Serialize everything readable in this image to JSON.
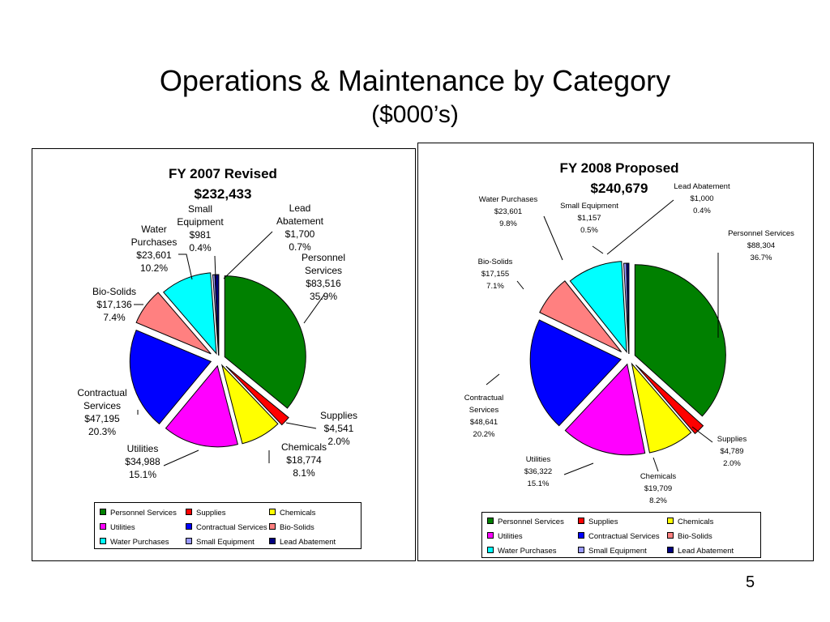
{
  "slide": {
    "title": "Operations & Maintenance by Category",
    "subtitle": "($000’s)",
    "page_number": "5"
  },
  "chart_data": [
    {
      "type": "pie",
      "title": "FY 2007 Revised",
      "subtitle": "$232,433",
      "categories": [
        "Personnel Services",
        "Supplies",
        "Chemicals",
        "Utilities",
        "Contractual Services",
        "Bio-Solids",
        "Water Purchases",
        "Small Equipment",
        "Lead Abatement"
      ],
      "values": [
        83516,
        4541,
        18774,
        34988,
        47195,
        17136,
        23601,
        981,
        1700
      ],
      "value_labels": [
        "$83,516",
        "$4,541",
        "$18,774",
        "$34,988",
        "$47,195",
        "$17,136",
        "$23,601",
        "$981",
        "$1,700"
      ],
      "percent_labels": [
        "35.9%",
        "2.0%",
        "8.1%",
        "15.1%",
        "20.3%",
        "7.4%",
        "10.2%",
        "0.4%",
        "0.7%"
      ],
      "slice_labels": [
        [
          "Personnel",
          "Services",
          "$83,516",
          "35.9%"
        ],
        [
          "Supplies",
          "$4,541",
          "2.0%"
        ],
        [
          "Chemicals",
          "$18,774",
          "8.1%"
        ],
        [
          "Utilities",
          "$34,988",
          "15.1%"
        ],
        [
          "Contractual",
          "Services",
          "$47,195",
          "20.3%"
        ],
        [
          "Bio-Solids",
          "$17,136",
          "7.4%"
        ],
        [
          "Water",
          "Purchases",
          "$23,601",
          "10.2%"
        ],
        [
          "Small",
          "Equipment",
          "$981",
          "0.4%"
        ],
        [
          "Lead",
          "Abatement",
          "$1,700",
          "0.7%"
        ]
      ],
      "legend_position": "bottom"
    },
    {
      "type": "pie",
      "title": "FY 2008 Proposed",
      "subtitle": "$240,679",
      "categories": [
        "Personnel Services",
        "Supplies",
        "Chemicals",
        "Utilities",
        "Contractual Services",
        "Bio-Solids",
        "Water Purchases",
        "Small Equipment",
        "Lead Abatement"
      ],
      "values": [
        88304,
        4789,
        19709,
        36322,
        48641,
        17155,
        23601,
        1157,
        1000
      ],
      "value_labels": [
        "$88,304",
        "$4,789",
        "$19,709",
        "$36,322",
        "$48,641",
        "$17,155",
        "$23,601",
        "$1,157",
        "$1,000"
      ],
      "percent_labels": [
        "36.7%",
        "2.0%",
        "8.2%",
        "15.1%",
        "20.2%",
        "7.1%",
        "9.8%",
        "0.5%",
        "0.4%"
      ],
      "slice_labels": [
        [
          "Personnel Services",
          "$88,304",
          "36.7%"
        ],
        [
          "Supplies",
          "$4,789",
          "2.0%"
        ],
        [
          "Chemicals",
          "$19,709",
          "8.2%"
        ],
        [
          "Utilities",
          "$36,322",
          "15.1%"
        ],
        [
          "Contractual",
          "Services",
          "$48,641",
          "20.2%"
        ],
        [
          "Bio-Solids",
          "$17,155",
          "7.1%"
        ],
        [
          "Water Purchases",
          "$23,601",
          "9.8%"
        ],
        [
          "Small Equipment",
          "$1,157",
          "0.5%"
        ],
        [
          "Lead Abatement",
          "$1,000",
          "0.4%"
        ]
      ],
      "legend_position": "bottom"
    }
  ],
  "colors": {
    "Personnel Services": "#008000",
    "Supplies": "#FF0000",
    "Chemicals": "#FFFF00",
    "Utilities": "#FF00FF",
    "Contractual Services": "#0000FF",
    "Bio-Solids": "#FF8080",
    "Water Purchases": "#00FFFF",
    "Small Equipment": "#9999FF",
    "Lead Abatement": "#000080"
  }
}
